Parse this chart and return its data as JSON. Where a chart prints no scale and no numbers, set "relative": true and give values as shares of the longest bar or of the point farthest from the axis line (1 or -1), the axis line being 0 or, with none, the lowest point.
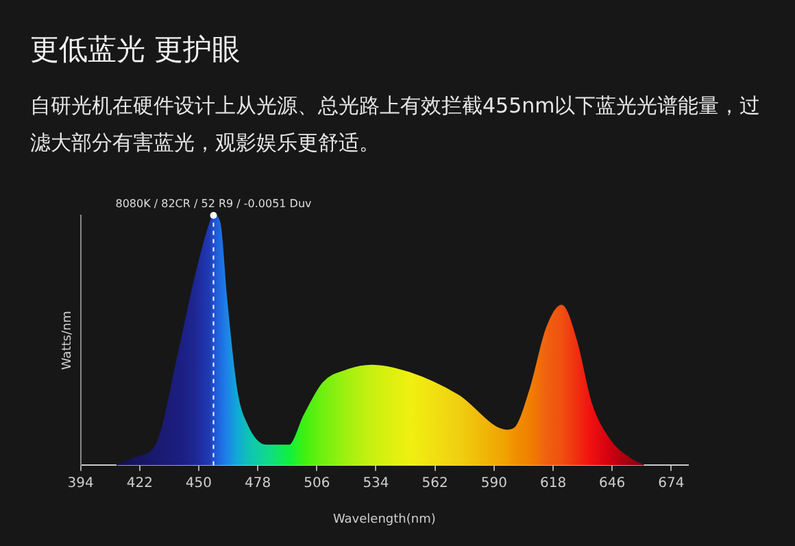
{
  "chart_data": {
    "type": "area",
    "title": "更低蓝光 更护眼",
    "subtitle": "自研光机在硬件设计上从光源、总光路上有效拦截455nm以下蓝光光谱能量，过滤大部分有害蓝光，观影娱乐更舒适。",
    "xlabel": "Wavelength(nm)",
    "ylabel": "Watts/nm",
    "relative": true,
    "x": [
      411,
      420,
      430,
      441,
      448,
      455,
      457,
      460,
      463,
      468,
      473,
      482,
      493,
      500,
      509,
      520,
      532,
      550,
      573,
      596,
      600,
      607,
      615,
      622,
      629,
      636,
      645,
      654,
      661
    ],
    "values": [
      0,
      0.03,
      0.085,
      0.47,
      0.74,
      0.96,
      1,
      0.97,
      0.68,
      0.3,
      0.16,
      0.08,
      0.08,
      0.2,
      0.33,
      0.38,
      0.4,
      0.37,
      0.28,
      0.14,
      0.15,
      0.3,
      0.55,
      0.64,
      0.5,
      0.25,
      0.1,
      0.03,
      0
    ],
    "colors": [
      "#12124a",
      "#151560",
      "#1a1a70",
      "#1c1e80",
      "#1e2690",
      "#1f3ab8",
      "#1f50d0",
      "#1e6ae0",
      "#1e80e8",
      "#10a8d8",
      "#10c0b8",
      "#10d890",
      "#10f040",
      "#40f010",
      "#70f010",
      "#a0f010",
      "#c8f010",
      "#f0f010",
      "#f0d010",
      "#f0a000",
      "#f09000",
      "#f08000",
      "#f06010",
      "#f05010",
      "#f03010",
      "#f01010",
      "#d00010",
      "#a00010",
      "#800010"
    ],
    "xlim": [
      394,
      682
    ],
    "xticks": [
      394,
      422,
      450,
      478,
      506,
      534,
      562,
      590,
      618,
      646,
      674
    ],
    "ref_lines": [
      {
        "axis": "x",
        "value": 457,
        "label": "8080K / 82CR / 52 R9 / -0.0051 Duv",
        "color": "#ffffff",
        "line_style": "dashed"
      }
    ],
    "grid": false,
    "legend": false
  }
}
